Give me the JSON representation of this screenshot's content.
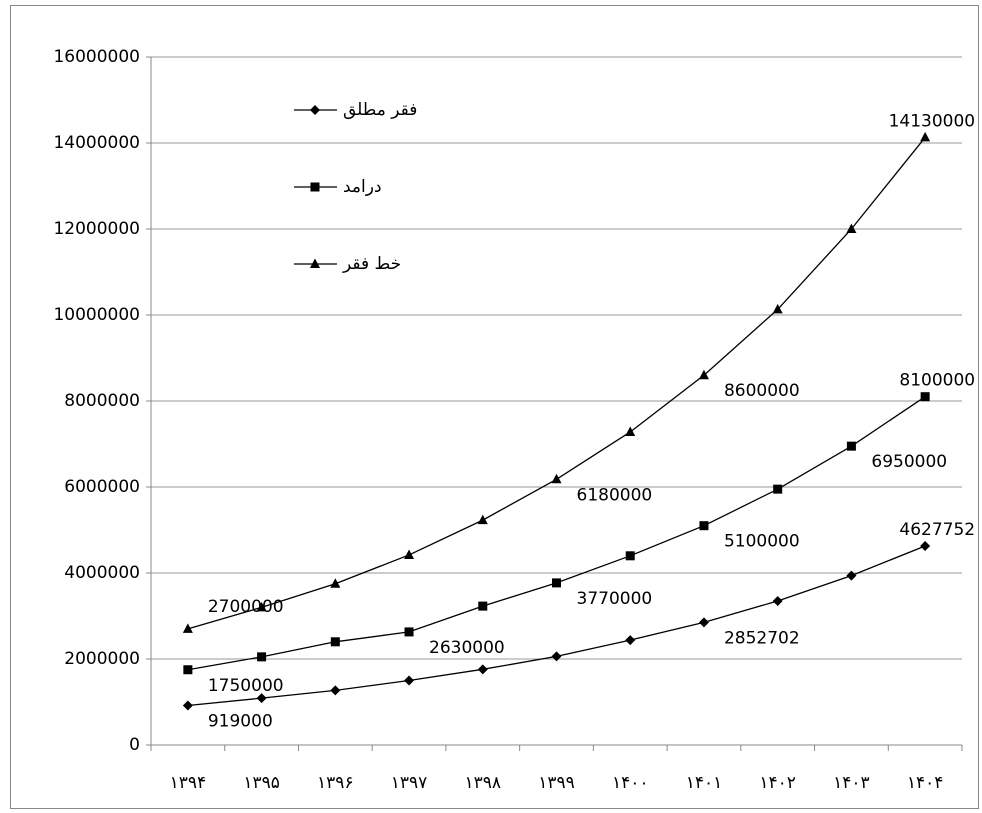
{
  "chart_data": {
    "type": "line",
    "categories": [
      "۱۳۹۴",
      "۱۳۹۵",
      "۱۳۹۶",
      "۱۳۹۷",
      "۱۳۹۸",
      "۱۳۹۹",
      "۱۴۰۰",
      "۱۴۰۱",
      "۱۴۰۲",
      "۱۴۰۳",
      "۱۴۰۴"
    ],
    "series": [
      {
        "name": "فقر مطلق",
        "marker": "diamond",
        "color": "#000000",
        "values": [
          919000,
          1090000,
          1270000,
          1500000,
          1760000,
          2060000,
          2440000,
          2852702,
          3350000,
          3940000,
          4627752
        ],
        "value_labels": [
          "919000",
          null,
          null,
          null,
          null,
          null,
          null,
          "2852702",
          null,
          null,
          "4627752"
        ]
      },
      {
        "name": "درامد",
        "marker": "square",
        "color": "#000000",
        "values": [
          1750000,
          2050000,
          2400000,
          2630000,
          3230000,
          3770000,
          4400000,
          5100000,
          5950000,
          6950000,
          8100000
        ],
        "value_labels": [
          "1750000",
          null,
          null,
          "2630000",
          null,
          "3770000",
          null,
          "5100000",
          null,
          "6950000",
          "8100000"
        ]
      },
      {
        "name": "خط فقر",
        "marker": "triangle",
        "color": "#000000",
        "values": [
          2700000,
          3200000,
          3750000,
          4420000,
          5230000,
          6180000,
          7280000,
          8600000,
          10130000,
          12000000,
          14130000
        ],
        "value_labels": [
          "2700000",
          null,
          null,
          null,
          null,
          "6180000",
          null,
          "8600000",
          null,
          null,
          "14130000"
        ]
      }
    ],
    "ylim": [
      0,
      16000000
    ],
    "yticks": [
      0,
      2000000,
      4000000,
      6000000,
      8000000,
      10000000,
      12000000,
      14000000,
      16000000
    ],
    "grid": true,
    "legend": "upper left"
  }
}
